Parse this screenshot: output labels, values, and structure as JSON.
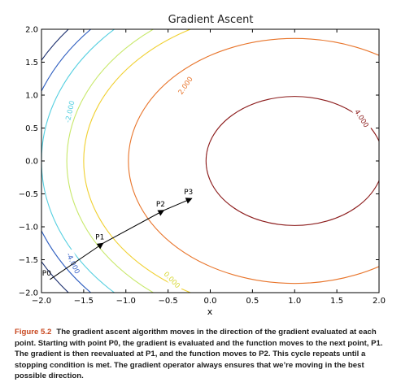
{
  "chart_data": {
    "type": "contour",
    "title": "Gradient Ascent",
    "xlabel": "x",
    "ylabel": "",
    "xlim": [
      -2.0,
      2.0
    ],
    "ylim": [
      -2.0,
      2.0
    ],
    "x_ticks": [
      "−2.0",
      "−1.5",
      "−1.0",
      "−0.5",
      "0.0",
      "0.5",
      "1.0",
      "1.5",
      "2.0"
    ],
    "y_ticks": [
      "2.0",
      "1.5",
      "1.0",
      "0.5",
      "0.0",
      "−0.5",
      "−1.0",
      "−1.5",
      "−2.0"
    ],
    "contour_labels": [
      {
        "text": "-2.000",
        "x": -1.67,
        "y": 0.75,
        "color": "#55cfe0"
      },
      {
        "text": "2.000",
        "x": -0.3,
        "y": 1.15,
        "color": "#e8742a"
      },
      {
        "text": "4.000",
        "x": 1.8,
        "y": 0.65,
        "color": "#8b1a1a"
      },
      {
        "text": "-4.000",
        "x": -1.62,
        "y": -1.55,
        "color": "#3a64c8"
      },
      {
        "text": "0.000",
        "x": -0.45,
        "y": -1.8,
        "color": "#d8d838"
      }
    ],
    "path_points": [
      {
        "label": "P0",
        "x": -1.9,
        "y": -1.8
      },
      {
        "label": "P1",
        "x": -1.27,
        "y": -1.25
      },
      {
        "label": "P2",
        "x": -0.55,
        "y": -0.75
      },
      {
        "label": "P3",
        "x": -0.22,
        "y": -0.57
      }
    ],
    "colors": {
      "level_neg4": "#1c2f6e",
      "level_neg3": "#2f5fc0",
      "level_neg2": "#55cfe0",
      "level_0": "#c8e86a",
      "level_1": "#f0d030",
      "level_2": "#e8742a",
      "level_4": "#8b1a1a"
    }
  },
  "caption": {
    "figure_label": "Figure 5.2",
    "text": "The gradient ascent algorithm moves in the direction of the gradient evaluated at each point. Starting with point P0, the gradient is evaluated and the function moves to the next point, P1. The gradient is then reevaluated at P1, and the function moves to P2. This cycle repeats until a stopping condition is met. The gradient operator always ensures that we’re moving in the best possible direction."
  }
}
